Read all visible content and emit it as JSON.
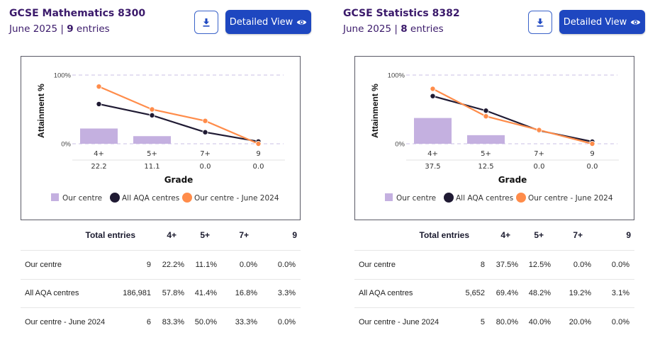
{
  "colors": {
    "title": "#3b1a6b",
    "primary_button": "#1e47c0",
    "our_centre": "#c4b0e0",
    "all_aqa": "#1f1a33",
    "our_centre_2024": "#ff8c4a",
    "gridline": "#c9bfe6"
  },
  "panels": [
    {
      "title": "GCSE Mathematics 8300",
      "session": "June 2025",
      "separator": "|",
      "entries_count": "9",
      "entries_label": "entries",
      "download_icon": "download-icon",
      "detailed_view_label": "Detailed View",
      "detailed_view_icon": "eye-icon",
      "chart_data": {
        "type": "bar",
        "title": "",
        "xlabel": "Grade",
        "ylabel": "Attainment %",
        "ylim": [
          0,
          100
        ],
        "yticks": [
          "0%",
          "100%"
        ],
        "grid": true,
        "categories": [
          "4+",
          "5+",
          "7+",
          "9"
        ],
        "category_values": [
          "22.2",
          "11.1",
          "0.0",
          "0.0"
        ],
        "series": [
          {
            "name": "Our centre",
            "kind": "bar",
            "values": [
              22.2,
              11.1,
              0.0,
              0.0
            ]
          },
          {
            "name": "All AQA centres",
            "kind": "line",
            "values": [
              57.8,
              41.4,
              16.8,
              3.3
            ]
          },
          {
            "name": "Our centre - June 2024",
            "kind": "line",
            "values": [
              83.3,
              50.0,
              33.3,
              0.0
            ]
          }
        ],
        "legend": [
          "Our centre",
          "All AQA centres",
          "Our centre - June 2024"
        ],
        "legend_position": "bottom"
      },
      "table": {
        "headers": [
          "",
          "Total entries",
          "4+",
          "5+",
          "7+",
          "9"
        ],
        "rows": [
          [
            "Our centre",
            "9",
            "22.2%",
            "11.1%",
            "0.0%",
            "0.0%"
          ],
          [
            "All AQA centres",
            "186,981",
            "57.8%",
            "41.4%",
            "16.8%",
            "3.3%"
          ],
          [
            "Our centre - June 2024",
            "6",
            "83.3%",
            "50.0%",
            "33.3%",
            "0.0%"
          ]
        ]
      }
    },
    {
      "title": "GCSE Statistics 8382",
      "session": "June 2025",
      "separator": "|",
      "entries_count": "8",
      "entries_label": "entries",
      "download_icon": "download-icon",
      "detailed_view_label": "Detailed View",
      "detailed_view_icon": "eye-icon",
      "chart_data": {
        "type": "bar",
        "title": "",
        "xlabel": "Grade",
        "ylabel": "Attainment %",
        "ylim": [
          0,
          100
        ],
        "yticks": [
          "0%",
          "100%"
        ],
        "grid": true,
        "categories": [
          "4+",
          "5+",
          "7+",
          "9"
        ],
        "category_values": [
          "37.5",
          "12.5",
          "0.0",
          "0.0"
        ],
        "series": [
          {
            "name": "Our centre",
            "kind": "bar",
            "values": [
              37.5,
              12.5,
              0.0,
              0.0
            ]
          },
          {
            "name": "All AQA centres",
            "kind": "line",
            "values": [
              69.4,
              48.2,
              19.2,
              3.1
            ]
          },
          {
            "name": "Our centre - June 2024",
            "kind": "line",
            "values": [
              80.0,
              40.0,
              20.0,
              0.0
            ]
          }
        ],
        "legend": [
          "Our centre",
          "All AQA centres",
          "Our centre - June 2024"
        ],
        "legend_position": "bottom"
      },
      "table": {
        "headers": [
          "",
          "Total entries",
          "4+",
          "5+",
          "7+",
          "9"
        ],
        "rows": [
          [
            "Our centre",
            "8",
            "37.5%",
            "12.5%",
            "0.0%",
            "0.0%"
          ],
          [
            "All AQA centres",
            "5,652",
            "69.4%",
            "48.2%",
            "19.2%",
            "3.1%"
          ],
          [
            "Our centre - June 2024",
            "5",
            "80.0%",
            "40.0%",
            "20.0%",
            "0.0%"
          ]
        ]
      }
    }
  ]
}
